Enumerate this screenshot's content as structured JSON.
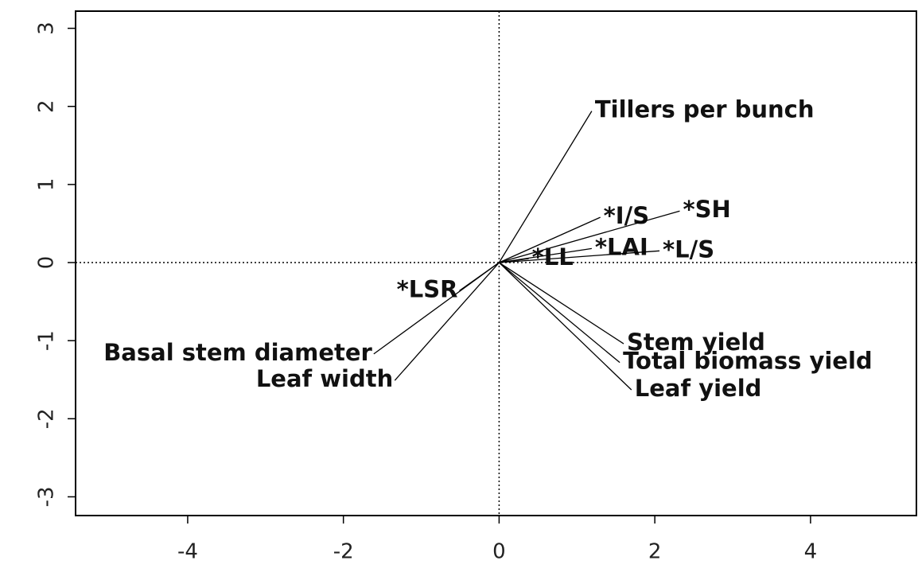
{
  "chart_data": {
    "type": "biplot",
    "vectors": [
      {
        "label": "Tillers per bunch",
        "x": 1.19,
        "y": 1.94
      },
      {
        "label": "*I/S",
        "x": 1.3,
        "y": 0.58
      },
      {
        "label": "*SH",
        "x": 2.32,
        "y": 0.66
      },
      {
        "label": "*LAI",
        "x": 1.19,
        "y": 0.18
      },
      {
        "label": "*L/S",
        "x": 2.06,
        "y": 0.15
      },
      {
        "label": "*LL",
        "x": 0.38,
        "y": 0.05
      },
      {
        "label": "*LSR",
        "x": -0.51,
        "y": -0.36
      },
      {
        "label": "Basal stem diameter",
        "x": -1.61,
        "y": -1.17
      },
      {
        "label": "Leaf width",
        "x": -1.34,
        "y": -1.51
      },
      {
        "label": "Stem yield",
        "x": 1.6,
        "y": -1.04
      },
      {
        "label": "Total biomass yield",
        "x": 1.55,
        "y": -1.28
      },
      {
        "label": "Leaf yield",
        "x": 1.7,
        "y": -1.63
      }
    ],
    "color": "#000000",
    "xlim": [
      -5.44,
      5.36
    ],
    "ylim": [
      -3.24,
      3.22
    ],
    "xticks": [
      -4,
      -2,
      0,
      2,
      4
    ],
    "yticks": [
      -3,
      -2,
      -1,
      0,
      1,
      2,
      3
    ]
  }
}
